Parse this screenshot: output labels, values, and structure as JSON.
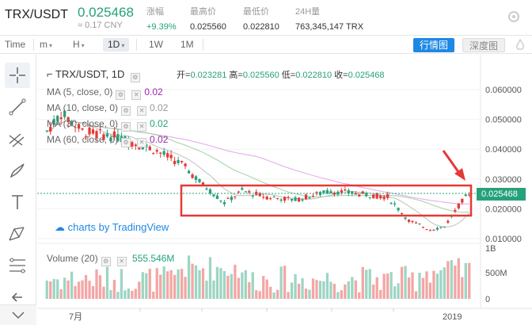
{
  "header": {
    "pair": "TRX/USDT",
    "price": "0.025468",
    "price_cny": "≈ 0.17 CNY",
    "change_label": "涨幅",
    "change_value": "+9.39%",
    "high_label": "最高价",
    "high_value": "0.025560",
    "low_label": "最低价",
    "low_value": "0.022810",
    "vol_label": "24H量",
    "vol_value": "763,345,147 TRX"
  },
  "toolbar": {
    "time": "Time",
    "m": "m",
    "h": "H",
    "d1": "1D",
    "w1": "1W",
    "mo1": "1M",
    "tab_market": "行情图",
    "tab_depth": "深度图"
  },
  "chart": {
    "symbol": "TRX/USDT, 1D",
    "open_label": "开=",
    "open": "0.023281",
    "high_label": "高=",
    "high": "0.025560",
    "low_label": "低=",
    "low": "0.022810",
    "close_label": "收=",
    "close": "0.025468",
    "ma": [
      {
        "label": "MA (5, close, 0)",
        "value": "0.02",
        "color": "#9c27b0"
      },
      {
        "label": "MA (10, close, 0)",
        "value": "0.02",
        "color": "#999999"
      },
      {
        "label": "MA (30, close, 0)",
        "value": "0.02",
        "color": "#26a17b"
      },
      {
        "label": "MA (60, close, 0)",
        "value": "0.02",
        "color": "#9c27b0"
      }
    ],
    "tradingview": "charts by TradingView",
    "current_price_tag": "0.025468",
    "volume_label": "Volume (20)",
    "volume_value": "555.546M",
    "y_ticks": [
      "0.060000",
      "0.050000",
      "0.040000",
      "0.030000",
      "0.020000",
      "0.010000"
    ],
    "vol_ticks": [
      "1B",
      "500M",
      "0"
    ],
    "x_ticks": [
      "7月",
      "2019"
    ],
    "colors": {
      "up": "#26a17b",
      "down": "#e53935",
      "accent": "#1e88e5",
      "highlight": "#e53935"
    }
  }
}
